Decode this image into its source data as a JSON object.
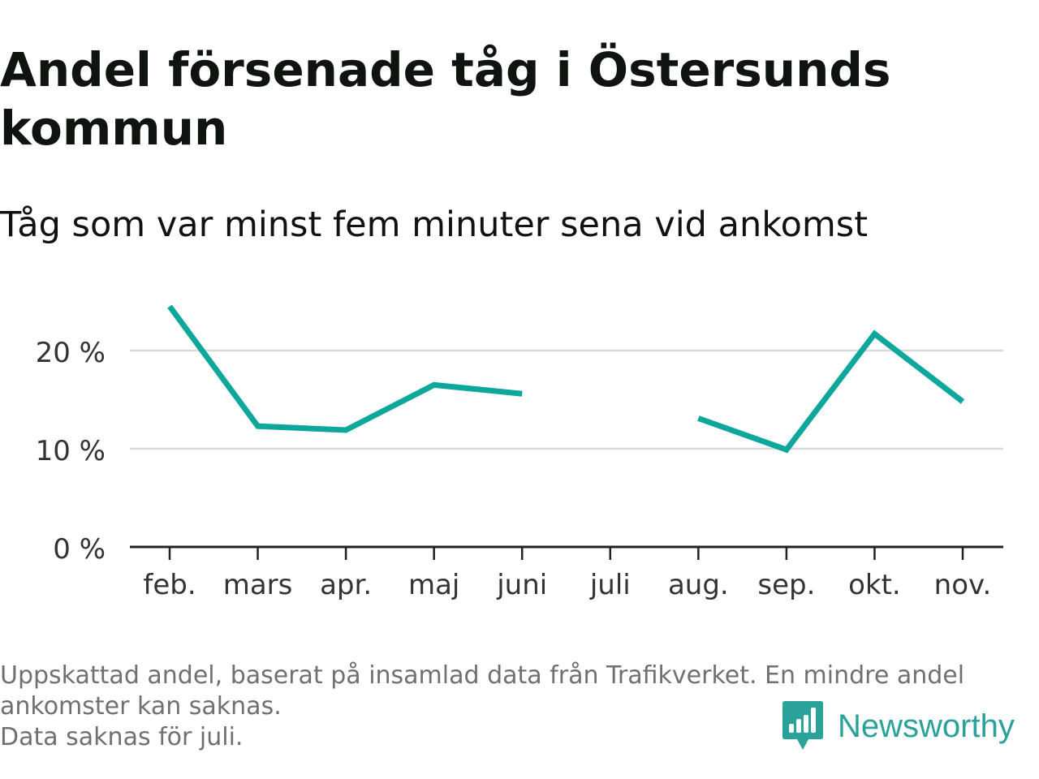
{
  "title": "Andel försenade tåg i Östersunds kommun",
  "subtitle": "Tåg som var minst fem minuter sena vid ankomst",
  "colors": {
    "line": "#0ea79c",
    "grid": "#d9d9d9",
    "axis": "#222222",
    "brand": "#2aa29a",
    "footnote": "#707070"
  },
  "chart_data": {
    "type": "line",
    "categories": [
      "feb.",
      "mars",
      "apr.",
      "maj",
      "juni",
      "juli",
      "aug.",
      "sep.",
      "okt.",
      "nov."
    ],
    "series": [
      {
        "values": [
          24.5,
          12.3,
          11.9,
          16.5,
          15.6,
          null,
          13.1,
          9.9,
          21.7,
          14.8
        ]
      }
    ],
    "yticks": [
      0,
      10,
      20
    ],
    "ytick_labels": [
      "0 %",
      "10 %",
      "20 %"
    ],
    "ylim": [
      0,
      25
    ],
    "grid": true,
    "legend": "none"
  },
  "footnote": {
    "line1": "Uppskattad andel, baserat på insamlad data från Trafikverket. En mindre andel",
    "line2": "ankomster kan saknas.",
    "line3": "Data saknas för juli."
  },
  "brand": {
    "name": "Newsworthy",
    "logo_icon": "bar-chart-speech-bubble-icon"
  }
}
